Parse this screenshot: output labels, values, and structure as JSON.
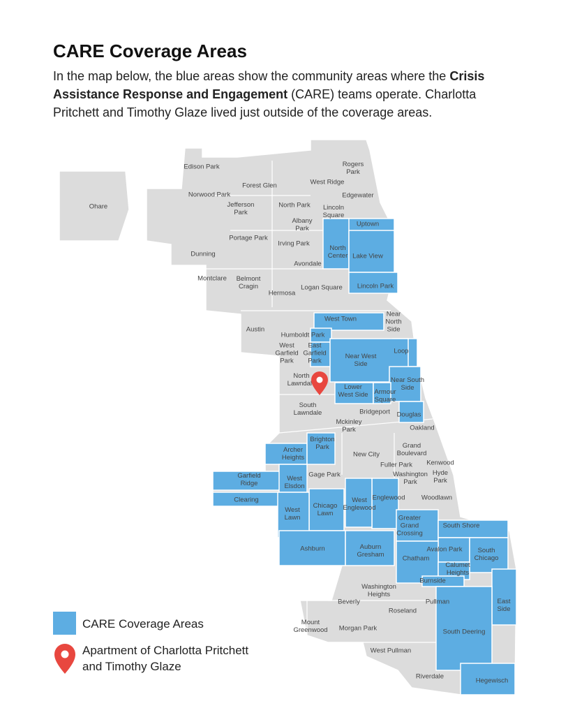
{
  "header": {
    "title": "CARE Coverage Areas",
    "description": {
      "before": "In the map below, the blue areas show the community areas where the ",
      "bold": "Crisis Assistance Response and Engagement",
      "after": " (CARE) teams operate. Charlotta Pritchett and Timothy Glaze lived just outside of the coverage areas."
    }
  },
  "map": {
    "areas": [
      {
        "name": [
          "Edison Park"
        ],
        "covered": false
      },
      {
        "name": [
          "Rogers",
          "Park"
        ],
        "covered": false
      },
      {
        "name": [
          "Forest Glen"
        ],
        "covered": false
      },
      {
        "name": [
          "West Ridge"
        ],
        "covered": false
      },
      {
        "name": [
          "Norwood Park"
        ],
        "covered": false
      },
      {
        "name": [
          "Edgewater"
        ],
        "covered": false
      },
      {
        "name": [
          "Ohare"
        ],
        "covered": false
      },
      {
        "name": [
          "Jefferson",
          "Park"
        ],
        "covered": false
      },
      {
        "name": [
          "North Park"
        ],
        "covered": false
      },
      {
        "name": [
          "Lincoln",
          "Square"
        ],
        "covered": false
      },
      {
        "name": [
          "Albany",
          "Park"
        ],
        "covered": false
      },
      {
        "name": [
          "Uptown"
        ],
        "covered": true
      },
      {
        "name": [
          "Portage Park"
        ],
        "covered": false
      },
      {
        "name": [
          "Irving Park"
        ],
        "covered": false
      },
      {
        "name": [
          "North",
          "Center"
        ],
        "covered": true
      },
      {
        "name": [
          "Lake View"
        ],
        "covered": true
      },
      {
        "name": [
          "Dunning"
        ],
        "covered": false
      },
      {
        "name": [
          "Avondale"
        ],
        "covered": false
      },
      {
        "name": [
          "Montclare"
        ],
        "covered": false
      },
      {
        "name": [
          "Belmont",
          "Cragin"
        ],
        "covered": false
      },
      {
        "name": [
          "Lincoln Park"
        ],
        "covered": true
      },
      {
        "name": [
          "Logan Square"
        ],
        "covered": false
      },
      {
        "name": [
          "Hermosa"
        ],
        "covered": false
      },
      {
        "name": [
          "Near",
          "North",
          "Side"
        ],
        "covered": false
      },
      {
        "name": [
          "West Town"
        ],
        "covered": true
      },
      {
        "name": [
          "Austin"
        ],
        "covered": false
      },
      {
        "name": [
          "Humboldt Park"
        ],
        "covered": true
      },
      {
        "name": [
          "West",
          "Garfield",
          "Park"
        ],
        "covered": false
      },
      {
        "name": [
          "East",
          "Garfield",
          "Park"
        ],
        "covered": true
      },
      {
        "name": [
          "Loop"
        ],
        "covered": true
      },
      {
        "name": [
          "Near West",
          "Side"
        ],
        "covered": true
      },
      {
        "name": [
          "North",
          "Lawndale"
        ],
        "covered": false
      },
      {
        "name": [
          "Near South",
          "Side"
        ],
        "covered": true
      },
      {
        "name": [
          "Lower",
          "West Side"
        ],
        "covered": true
      },
      {
        "name": [
          "Armour",
          "Square"
        ],
        "covered": true
      },
      {
        "name": [
          "South",
          "Lawndale"
        ],
        "covered": false
      },
      {
        "name": [
          "Bridgeport"
        ],
        "covered": false
      },
      {
        "name": [
          "Douglas"
        ],
        "covered": true
      },
      {
        "name": [
          "Mckinley",
          "Park"
        ],
        "covered": false
      },
      {
        "name": [
          "Oakland"
        ],
        "covered": false
      },
      {
        "name": [
          "Archer",
          "Heights"
        ],
        "covered": true
      },
      {
        "name": [
          "Brighton",
          "Park"
        ],
        "covered": true
      },
      {
        "name": [
          "Grand",
          "Boulevard"
        ],
        "covered": false
      },
      {
        "name": [
          "New City"
        ],
        "covered": false
      },
      {
        "name": [
          "Kenwood"
        ],
        "covered": false
      },
      {
        "name": [
          "Fuller Park"
        ],
        "covered": false
      },
      {
        "name": [
          "Washington",
          "Park"
        ],
        "covered": false
      },
      {
        "name": [
          "Hyde",
          "Park"
        ],
        "covered": false
      },
      {
        "name": [
          "Garfield",
          "Ridge"
        ],
        "covered": true
      },
      {
        "name": [
          "West",
          "Elsdon"
        ],
        "covered": true
      },
      {
        "name": [
          "Gage Park"
        ],
        "covered": false
      },
      {
        "name": [
          "Englewood"
        ],
        "covered": true
      },
      {
        "name": [
          "Woodlawn"
        ],
        "covered": false
      },
      {
        "name": [
          "Clearing"
        ],
        "covered": true
      },
      {
        "name": [
          "West",
          "Englewood"
        ],
        "covered": true
      },
      {
        "name": [
          "Chicago",
          "Lawn"
        ],
        "covered": true
      },
      {
        "name": [
          "West",
          "Lawn"
        ],
        "covered": true
      },
      {
        "name": [
          "Greater",
          "Grand",
          "Crossing"
        ],
        "covered": true
      },
      {
        "name": [
          "South Shore"
        ],
        "covered": true
      },
      {
        "name": [
          "Avalon Park"
        ],
        "covered": true
      },
      {
        "name": [
          "South",
          "Chicago"
        ],
        "covered": true
      },
      {
        "name": [
          "Ashburn"
        ],
        "covered": true
      },
      {
        "name": [
          "Auburn",
          "Gresham"
        ],
        "covered": true
      },
      {
        "name": [
          "Chatham"
        ],
        "covered": true
      },
      {
        "name": [
          "Calumet",
          "Heights"
        ],
        "covered": true
      },
      {
        "name": [
          "Burnside"
        ],
        "covered": true
      },
      {
        "name": [
          "Washington",
          "Heights"
        ],
        "covered": false
      },
      {
        "name": [
          "East",
          "Side"
        ],
        "covered": true
      },
      {
        "name": [
          "Pullman"
        ],
        "covered": false
      },
      {
        "name": [
          "Beverly"
        ],
        "covered": false
      },
      {
        "name": [
          "Roseland"
        ],
        "covered": false
      },
      {
        "name": [
          "Mount",
          "Greenwood"
        ],
        "covered": false
      },
      {
        "name": [
          "Morgan Park"
        ],
        "covered": false
      },
      {
        "name": [
          "South Deering"
        ],
        "covered": true
      },
      {
        "name": [
          "West Pullman"
        ],
        "covered": false
      },
      {
        "name": [
          "Riverdale"
        ],
        "covered": false
      },
      {
        "name": [
          "Hegewisch"
        ],
        "covered": true
      }
    ]
  },
  "legend": {
    "coverage": "CARE Coverage Areas",
    "apartment": "Apartment of Charlotta Pritchett and Timothy Glaze"
  }
}
